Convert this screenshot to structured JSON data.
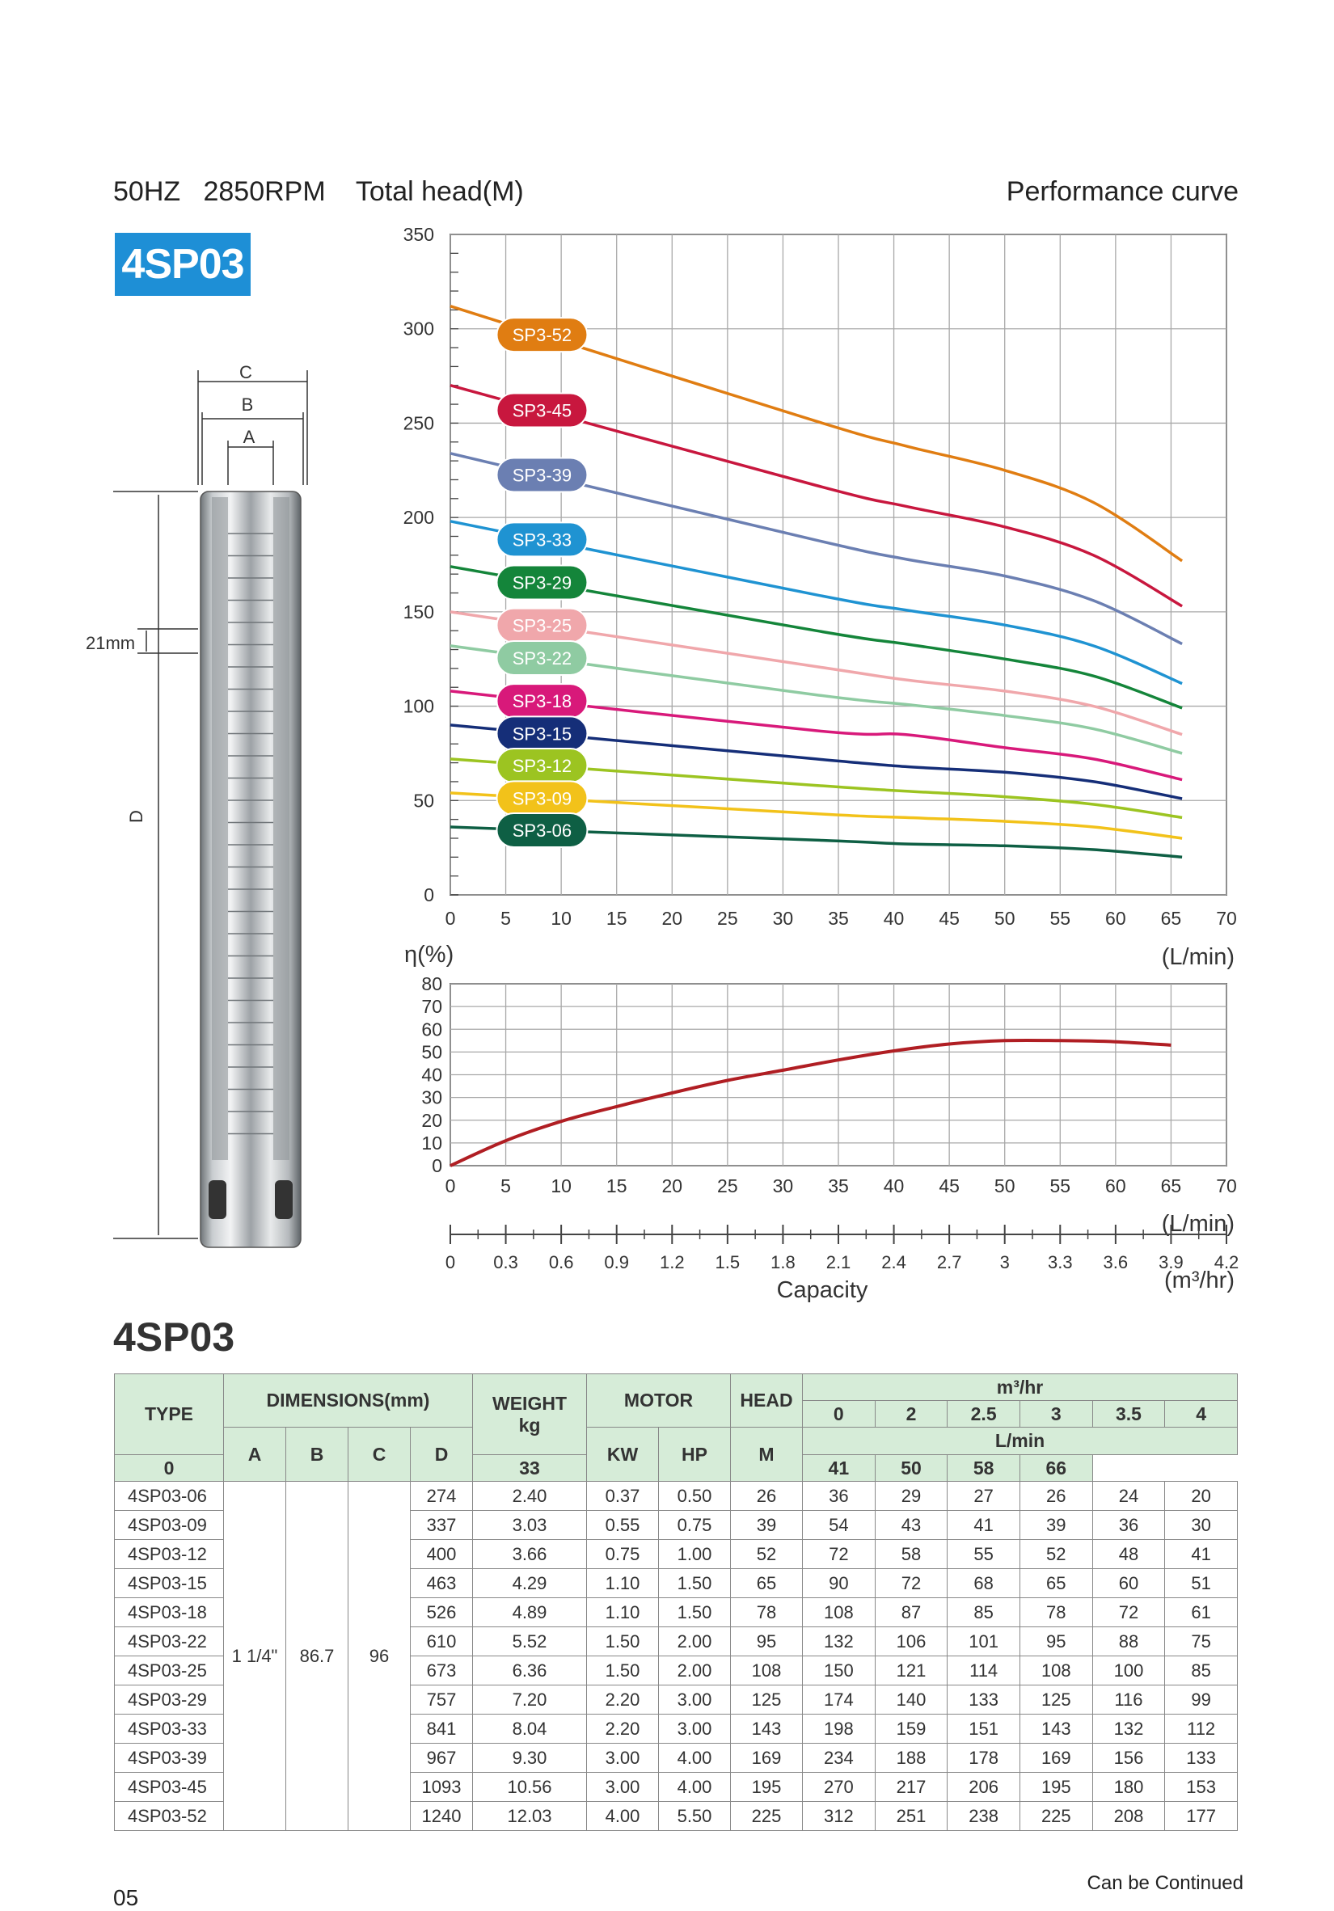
{
  "header": {
    "left": "50HZ   2850RPM    Total head(M)",
    "right": "Performance curve"
  },
  "model_badge": "4SP03",
  "pump_drawing": {
    "dim_c": "C",
    "dim_b": "B",
    "dim_a": "A",
    "dim_d": "D",
    "stage_height": "21mm"
  },
  "colors": {
    "badge": "#1e8fd6",
    "header_fill": "#d6ecd8",
    "efficiency_curve": "#b01e23"
  },
  "chart_data": [
    {
      "type": "line",
      "title": "Performance curve",
      "ylabel": "Total head(M)",
      "xlabel": "(L/min)",
      "xlim": [
        0,
        70
      ],
      "ylim": [
        0,
        350
      ],
      "x_ticks": [
        0,
        5,
        10,
        15,
        20,
        25,
        30,
        35,
        40,
        45,
        50,
        55,
        60,
        65,
        70
      ],
      "y_ticks": [
        0,
        50,
        100,
        150,
        200,
        250,
        300,
        350
      ],
      "grid": true,
      "series": [
        {
          "name": "SP3-52",
          "color": "#e07d12",
          "x": [
            0,
            33,
            41,
            50,
            58,
            66
          ],
          "y": [
            312,
            251,
            238,
            225,
            208,
            177
          ]
        },
        {
          "name": "SP3-45",
          "color": "#c8173e",
          "x": [
            0,
            33,
            41,
            50,
            58,
            66
          ],
          "y": [
            270,
            217,
            206,
            195,
            180,
            153
          ]
        },
        {
          "name": "SP3-39",
          "color": "#6b7fb2",
          "x": [
            0,
            33,
            41,
            50,
            58,
            66
          ],
          "y": [
            234,
            188,
            178,
            169,
            156,
            133
          ]
        },
        {
          "name": "SP3-33",
          "color": "#1f93d2",
          "x": [
            0,
            33,
            41,
            50,
            58,
            66
          ],
          "y": [
            198,
            159,
            151,
            143,
            132,
            112
          ]
        },
        {
          "name": "SP3-29",
          "color": "#14853a",
          "x": [
            0,
            33,
            41,
            50,
            58,
            66
          ],
          "y": [
            174,
            140,
            133,
            125,
            116,
            99
          ]
        },
        {
          "name": "SP3-25",
          "color": "#f0a7ab",
          "x": [
            0,
            33,
            41,
            50,
            58,
            66
          ],
          "y": [
            150,
            121,
            114,
            108,
            100,
            85
          ]
        },
        {
          "name": "SP3-22",
          "color": "#8fcba2",
          "x": [
            0,
            33,
            41,
            50,
            58,
            66
          ],
          "y": [
            132,
            106,
            101,
            95,
            88,
            75
          ]
        },
        {
          "name": "SP3-18",
          "color": "#d8197a",
          "x": [
            0,
            33,
            41,
            50,
            58,
            66
          ],
          "y": [
            108,
            87,
            85,
            78,
            72,
            61
          ]
        },
        {
          "name": "SP3-15",
          "color": "#152e78",
          "x": [
            0,
            33,
            41,
            50,
            58,
            66
          ],
          "y": [
            90,
            72,
            68,
            65,
            60,
            51
          ]
        },
        {
          "name": "SP3-12",
          "color": "#9cc421",
          "x": [
            0,
            33,
            41,
            50,
            58,
            66
          ],
          "y": [
            72,
            58,
            55,
            52,
            48,
            41
          ]
        },
        {
          "name": "SP3-09",
          "color": "#f2c21a",
          "x": [
            0,
            33,
            41,
            50,
            58,
            66
          ],
          "y": [
            54,
            43,
            41,
            39,
            36,
            30
          ]
        },
        {
          "name": "SP3-06",
          "color": "#0e5f44",
          "x": [
            0,
            33,
            41,
            50,
            58,
            66
          ],
          "y": [
            36,
            29,
            27,
            26,
            24,
            20
          ]
        }
      ]
    },
    {
      "type": "line",
      "ylabel": "η(%)",
      "xlabel": "(L/min)",
      "xlim": [
        0,
        70
      ],
      "ylim": [
        0,
        80
      ],
      "x_ticks": [
        0,
        5,
        10,
        15,
        20,
        25,
        30,
        35,
        40,
        45,
        50,
        55,
        60,
        65,
        70
      ],
      "y_ticks": [
        0,
        10,
        20,
        30,
        40,
        50,
        60,
        70,
        80
      ],
      "grid": true,
      "series": [
        {
          "x": [
            0,
            5,
            10,
            15,
            20,
            25,
            30,
            35,
            40,
            45,
            50,
            55,
            60,
            65
          ],
          "y": [
            0,
            11,
            19.5,
            26,
            32,
            37.5,
            42,
            46.5,
            50.5,
            53.5,
            55,
            55,
            54.5,
            53
          ]
        }
      ]
    },
    {
      "type": "axis",
      "xlabel": "Capacity",
      "unit": "(m³/hr)",
      "xlim": [
        0,
        4.2
      ],
      "x_ticks": [
        "0",
        "0.3",
        "0.6",
        "0.9",
        "1.2",
        "1.5",
        "1.8",
        "2.1",
        "2.4",
        "2.7",
        "3",
        "3.3",
        "3.6",
        "3.9",
        "4.2"
      ]
    }
  ],
  "table": {
    "title": "4SP03",
    "headers": {
      "type": "TYPE",
      "dimensions": "DIMENSIONS(mm)",
      "weight": "WEIGHT",
      "weight_unit": "kg",
      "motor": "MOTOR",
      "head": "HEAD",
      "head_unit": "M",
      "m3hr": "m³/hr",
      "lmin": "L/min",
      "a": "A",
      "b": "B",
      "c": "C",
      "d": "D",
      "kw": "KW",
      "hp": "HP",
      "m3hr_values": [
        "0",
        "2",
        "2.5",
        "3",
        "3.5",
        "4"
      ],
      "lmin_values": [
        "0",
        "33",
        "41",
        "50",
        "58",
        "66"
      ]
    },
    "shared": {
      "a": "1 1/4\"",
      "b": "86.7",
      "c": "96"
    },
    "rows": [
      {
        "type": "4SP03-06",
        "d": "274",
        "weight": "2.40",
        "kw": "0.37",
        "hp": "0.50",
        "head": "26",
        "flow": [
          "36",
          "29",
          "27",
          "26",
          "24",
          "20"
        ]
      },
      {
        "type": "4SP03-09",
        "d": "337",
        "weight": "3.03",
        "kw": "0.55",
        "hp": "0.75",
        "head": "39",
        "flow": [
          "54",
          "43",
          "41",
          "39",
          "36",
          "30"
        ]
      },
      {
        "type": "4SP03-12",
        "d": "400",
        "weight": "3.66",
        "kw": "0.75",
        "hp": "1.00",
        "head": "52",
        "flow": [
          "72",
          "58",
          "55",
          "52",
          "48",
          "41"
        ]
      },
      {
        "type": "4SP03-15",
        "d": "463",
        "weight": "4.29",
        "kw": "1.10",
        "hp": "1.50",
        "head": "65",
        "flow": [
          "90",
          "72",
          "68",
          "65",
          "60",
          "51"
        ]
      },
      {
        "type": "4SP03-18",
        "d": "526",
        "weight": "4.89",
        "kw": "1.10",
        "hp": "1.50",
        "head": "78",
        "flow": [
          "108",
          "87",
          "85",
          "78",
          "72",
          "61"
        ]
      },
      {
        "type": "4SP03-22",
        "d": "610",
        "weight": "5.52",
        "kw": "1.50",
        "hp": "2.00",
        "head": "95",
        "flow": [
          "132",
          "106",
          "101",
          "95",
          "88",
          "75"
        ]
      },
      {
        "type": "4SP03-25",
        "d": "673",
        "weight": "6.36",
        "kw": "1.50",
        "hp": "2.00",
        "head": "108",
        "flow": [
          "150",
          "121",
          "114",
          "108",
          "100",
          "85"
        ]
      },
      {
        "type": "4SP03-29",
        "d": "757",
        "weight": "7.20",
        "kw": "2.20",
        "hp": "3.00",
        "head": "125",
        "flow": [
          "174",
          "140",
          "133",
          "125",
          "116",
          "99"
        ]
      },
      {
        "type": "4SP03-33",
        "d": "841",
        "weight": "8.04",
        "kw": "2.20",
        "hp": "3.00",
        "head": "143",
        "flow": [
          "198",
          "159",
          "151",
          "143",
          "132",
          "112"
        ]
      },
      {
        "type": "4SP03-39",
        "d": "967",
        "weight": "9.30",
        "kw": "3.00",
        "hp": "4.00",
        "head": "169",
        "flow": [
          "234",
          "188",
          "178",
          "169",
          "156",
          "133"
        ]
      },
      {
        "type": "4SP03-45",
        "d": "1093",
        "weight": "10.56",
        "kw": "3.00",
        "hp": "4.00",
        "head": "195",
        "flow": [
          "270",
          "217",
          "206",
          "195",
          "180",
          "153"
        ]
      },
      {
        "type": "4SP03-52",
        "d": "1240",
        "weight": "12.03",
        "kw": "4.00",
        "hp": "5.50",
        "head": "225",
        "flow": [
          "312",
          "251",
          "238",
          "225",
          "208",
          "177"
        ]
      }
    ]
  },
  "footer": {
    "page_number": "05",
    "note": "Can be Continued"
  }
}
